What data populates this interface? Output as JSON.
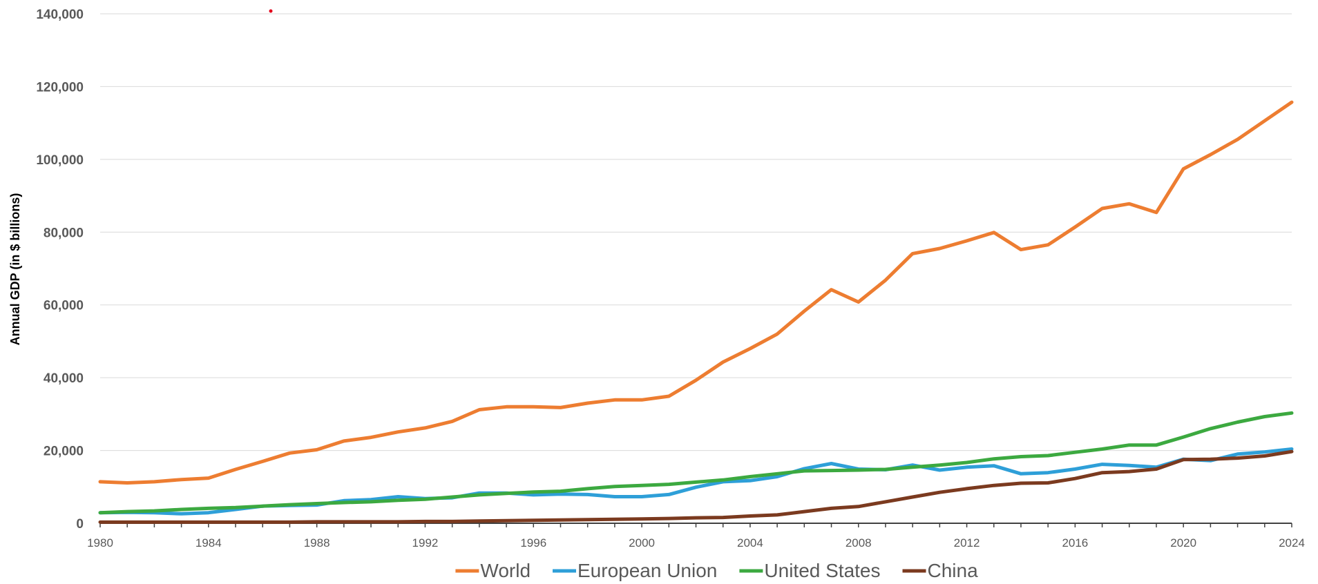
{
  "chart_data": {
    "type": "line",
    "title": "",
    "xlabel": "",
    "ylabel": "Annual GDP (in $ billions)",
    "xlim": [
      1980,
      2024
    ],
    "ylim": [
      0,
      140000
    ],
    "y_ticks": [
      0,
      20000,
      40000,
      60000,
      80000,
      100000,
      120000,
      140000
    ],
    "y_tick_labels": [
      "0",
      "20,000",
      "40,000",
      "60,000",
      "80,000",
      "100,000",
      "120,000",
      "140,000"
    ],
    "x_ticks": [
      1980,
      1984,
      1988,
      1992,
      1996,
      2000,
      2004,
      2008,
      2012,
      2016,
      2020,
      2024
    ],
    "x_tick_labels": [
      "1980",
      "1984",
      "1988",
      "1992",
      "1996",
      "2000",
      "2004",
      "2008",
      "2012",
      "2016",
      "2020",
      "2024"
    ],
    "grid": true,
    "legend_position": "bottom",
    "x": [
      1980,
      1981,
      1982,
      1983,
      1984,
      1985,
      1986,
      1987,
      1988,
      1989,
      1990,
      1991,
      1992,
      1993,
      1994,
      1995,
      1996,
      1997,
      1998,
      1999,
      2000,
      2001,
      2002,
      2003,
      2004,
      2005,
      2006,
      2007,
      2008,
      2009,
      2010,
      2011,
      2012,
      2013,
      2014,
      2015,
      2016,
      2017,
      2018,
      2019,
      2020,
      2021,
      2022,
      2023,
      2024
    ],
    "series": [
      {
        "name": "World",
        "color": "#ed7d31",
        "values": [
          11400,
          11100,
          11400,
          12000,
          12400,
          14800,
          17000,
          19300,
          20200,
          22600,
          23600,
          25100,
          26200,
          28000,
          31200,
          32000,
          32000,
          31800,
          33000,
          33900,
          33900,
          34900,
          39300,
          44300,
          48000,
          52000,
          58300,
          64200,
          60800,
          66800,
          74100,
          75500,
          77600,
          79900,
          75200,
          76500,
          81400,
          86500,
          87800,
          85400,
          97400,
          101300,
          105500,
          110600,
          115700
        ]
      },
      {
        "name": "European Union",
        "color": "#2e9fd8",
        "values": [
          2900,
          3000,
          2900,
          2600,
          2900,
          3800,
          4700,
          4900,
          5000,
          6200,
          6500,
          7300,
          6800,
          7000,
          8300,
          8300,
          7800,
          8000,
          7900,
          7300,
          7300,
          7900,
          9900,
          11400,
          11700,
          12800,
          15000,
          16400,
          14900,
          14700,
          16000,
          14600,
          15400,
          15800,
          13600,
          13900,
          14900,
          16200,
          15900,
          15400,
          17600,
          17200,
          19000,
          19600,
          20400
        ]
      },
      {
        "name": "United States",
        "color": "#3ca940",
        "values": [
          2900,
          3200,
          3400,
          3800,
          4100,
          4300,
          4700,
          5100,
          5400,
          5700,
          5900,
          6300,
          6600,
          7200,
          7800,
          8200,
          8600,
          8800,
          9500,
          10100,
          10400,
          10700,
          11300,
          11900,
          12800,
          13600,
          14400,
          14500,
          14600,
          14800,
          15400,
          16000,
          16700,
          17700,
          18300,
          18600,
          19500,
          20400,
          21500,
          21500,
          23700,
          26000,
          27800,
          29300,
          30300
        ]
      },
      {
        "name": "China",
        "color": "#7b3a1f",
        "values": [
          300,
          300,
          300,
          300,
          300,
          300,
          300,
          300,
          400,
          400,
          400,
          400,
          500,
          500,
          600,
          700,
          800,
          900,
          1000,
          1100,
          1200,
          1300,
          1500,
          1600,
          2000,
          2300,
          3200,
          4100,
          4600,
          5900,
          7200,
          8500,
          9500,
          10400,
          11000,
          11100,
          12300,
          13900,
          14200,
          14900,
          17500,
          17600,
          17900,
          18500,
          19700
        ]
      }
    ]
  }
}
